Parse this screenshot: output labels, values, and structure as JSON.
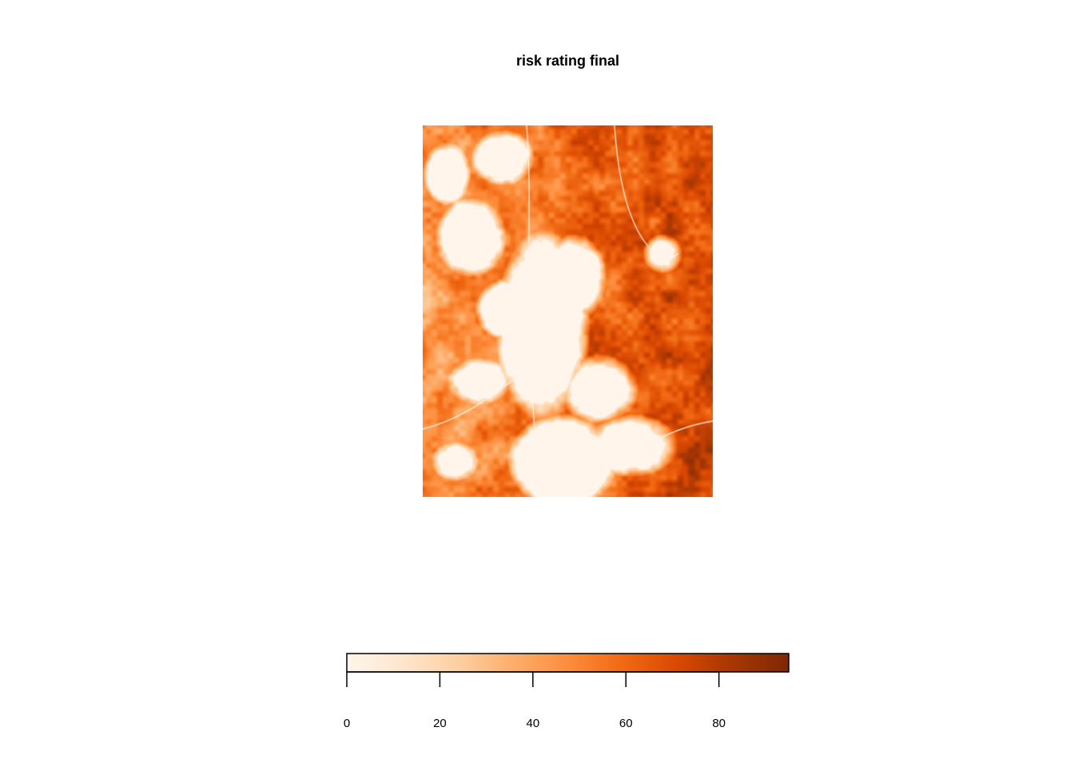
{
  "title": "risk rating final",
  "map": {
    "palette": [
      "#fff5eb",
      "#fee6ce",
      "#fdd0a2",
      "#fdae6b",
      "#fd8d3c",
      "#f16913",
      "#d94801",
      "#a63603",
      "#7f2704"
    ]
  },
  "legend": {
    "min": 0,
    "max": 95,
    "ticks": [
      {
        "value": 0,
        "label": "0"
      },
      {
        "value": 20,
        "label": "20"
      },
      {
        "value": 40,
        "label": "40"
      },
      {
        "value": 60,
        "label": "60"
      },
      {
        "value": 80,
        "label": "80"
      }
    ]
  }
}
